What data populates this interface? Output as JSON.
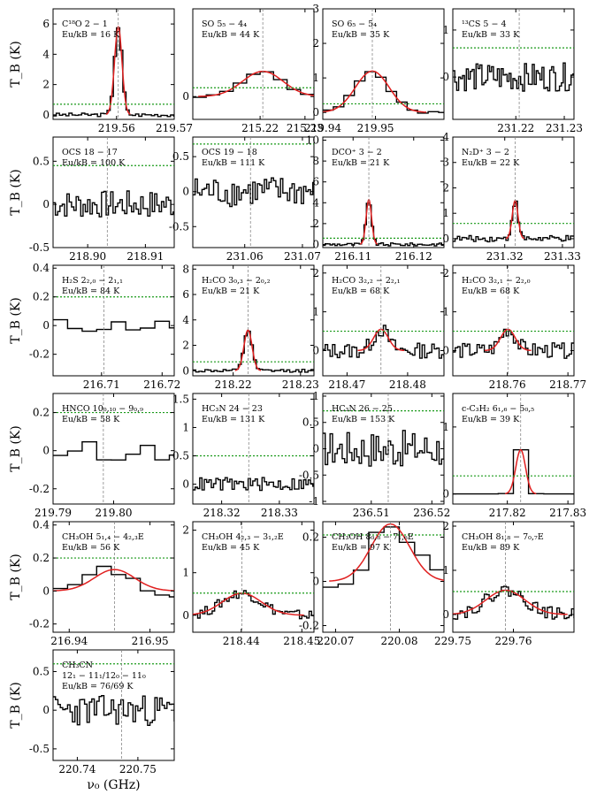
{
  "figure": {
    "ylabel": "T_B (K)",
    "xlabel": "ν₀ (GHz)"
  },
  "chart_data": [
    {
      "type": "line",
      "mol": "C¹⁸O 2 − 1",
      "eu": "Eu/kB = 16 K",
      "x_range": [
        219.549,
        219.57
      ],
      "xticks": [
        219.56,
        219.57
      ],
      "ylim": [
        -0.3,
        7.0
      ],
      "yticks": [
        0,
        2,
        4,
        6
      ],
      "line_freq": 219.5603,
      "noise": 0.7,
      "peak": 5.8,
      "width": 0.00065,
      "spec_noise": 0.12,
      "step": 0.00055,
      "ylabel": true,
      "xlabel": false
    },
    {
      "type": "line",
      "mol": "SO 5₅ − 4₄",
      "eu": "Eu/kB = 44 K",
      "x_range": [
        215.205,
        215.232
      ],
      "xticks": [
        215.22,
        215.23
      ],
      "ylim": [
        -0.65,
        2.5
      ],
      "yticks": [
        0
      ],
      "line_freq": 215.2206,
      "noise": 0.25,
      "peak": 0.72,
      "width": 0.0045,
      "spec_noise": 0.03,
      "step": 0.003,
      "ylabel": false,
      "xlabel": false
    },
    {
      "type": "line",
      "mol": "SO 6₅ − 5₄",
      "eu": "Eu/kB = 35 K",
      "x_range": [
        219.94,
        219.963
      ],
      "xticks": [
        219.94,
        219.95
      ],
      "ylim": [
        -0.2,
        3.0
      ],
      "yticks": [
        0,
        1,
        2,
        3
      ],
      "line_freq": 219.9494,
      "noise": 0.25,
      "peak": 1.2,
      "width": 0.0032,
      "spec_noise": 0.04,
      "step": 0.002,
      "ylabel": false,
      "xlabel": false
    },
    {
      "type": "line",
      "mol": "¹³CS 5 − 4",
      "eu": "Eu/kB = 33 K",
      "x_range": [
        231.207,
        231.232
      ],
      "xticks": [
        231.22,
        231.23
      ],
      "ylim": [
        -0.9,
        1.45
      ],
      "yticks": [
        0,
        1
      ],
      "line_freq": 231.2207,
      "noise": 0.62,
      "peak": 0.0,
      "width": 0.001,
      "spec_noise": 0.3,
      "step": 0.0004,
      "ylabel": false,
      "xlabel": false
    },
    {
      "type": "line",
      "mol": "OCS 18 − 17",
      "eu": "Eu/kB = 100 K",
      "x_range": [
        218.894,
        218.915
      ],
      "xticks": [
        218.9,
        218.91
      ],
      "ylim": [
        -0.5,
        0.78
      ],
      "yticks": [
        -0.5,
        0.0,
        0.5
      ],
      "line_freq": 218.9034,
      "noise": 0.45,
      "peak": 0.0,
      "width": 0.001,
      "spec_noise": 0.16,
      "step": 0.0004,
      "ylabel": true,
      "xlabel": false
    },
    {
      "type": "line",
      "mol": "OCS 19 − 18",
      "eu": "Eu/kB = 111 K",
      "x_range": [
        231.051,
        231.072
      ],
      "xticks": [
        231.06,
        231.07
      ],
      "ylim": [
        -0.8,
        0.78
      ],
      "yticks": [
        -0.5,
        0.0,
        0.5
      ],
      "line_freq": 231.061,
      "noise": 0.68,
      "peak": 0.0,
      "width": 0.001,
      "spec_noise": 0.22,
      "step": 0.0004,
      "ylabel": false,
      "xlabel": false
    },
    {
      "type": "line",
      "mol": "DCO⁺ 3 − 2",
      "eu": "Eu/kB = 21 K",
      "x_range": [
        216.105,
        216.125
      ],
      "xticks": [
        216.11,
        216.12
      ],
      "ylim": [
        -0.3,
        10.3
      ],
      "yticks": [
        0,
        2,
        4,
        6,
        8,
        10
      ],
      "line_freq": 216.1126,
      "noise": 0.6,
      "peak": 4.3,
      "width": 0.00045,
      "spec_noise": 0.15,
      "step": 0.0004,
      "ylabel": false,
      "xlabel": false
    },
    {
      "type": "line",
      "mol": "N₂D⁺ 3 − 2",
      "eu": "Eu/kB = 22 K",
      "x_range": [
        231.311,
        231.332
      ],
      "xticks": [
        231.32,
        231.33
      ],
      "ylim": [
        -0.35,
        4.0
      ],
      "yticks": [
        0,
        1,
        2,
        3,
        4
      ],
      "line_freq": 231.3218,
      "noise": 0.6,
      "peak": 1.5,
      "width": 0.0005,
      "spec_noise": 0.12,
      "step": 0.0004,
      "ylabel": false,
      "xlabel": false
    },
    {
      "type": "line",
      "mol": "H₂S 2₂,₀ − 2₁,₁",
      "eu": "Eu/kB = 84 K",
      "x_range": [
        216.702,
        216.722
      ],
      "xticks": [
        216.71,
        216.72
      ],
      "ylim": [
        -0.35,
        0.42
      ],
      "yticks": [
        -0.2,
        0.0,
        0.2,
        0.4
      ],
      "line_freq": 216.7104,
      "noise": 0.2,
      "peak": 0.0,
      "width": 0.001,
      "spec_noise": 0.05,
      "step": 0.0024,
      "ylabel": true,
      "xlabel": false
    },
    {
      "type": "line",
      "mol": "H₂CO 3₀,₃ − 2₀,₂",
      "eu": "Eu/kB = 21 K",
      "x_range": [
        218.214,
        218.232
      ],
      "xticks": [
        218.22,
        218.23
      ],
      "ylim": [
        -0.4,
        8.3
      ],
      "yticks": [
        0,
        2,
        4,
        6,
        8
      ],
      "line_freq": 218.2222,
      "noise": 0.7,
      "peak": 3.2,
      "width": 0.0006,
      "spec_noise": 0.12,
      "step": 0.00045,
      "ylabel": false,
      "xlabel": false
    },
    {
      "type": "line",
      "mol": "H₂CO 3₂,₂ − 2₂,₁",
      "eu": "Eu/kB = 68 K",
      "x_range": [
        218.466,
        218.486
      ],
      "xticks": [
        218.47,
        218.48
      ],
      "ylim": [
        -0.65,
        2.2
      ],
      "yticks": [
        0,
        1,
        2
      ],
      "line_freq": 218.4756,
      "noise": 0.5,
      "peak": 0.55,
      "width": 0.0012,
      "spec_noise": 0.2,
      "step": 0.0004,
      "ylabel": false,
      "xlabel": false
    },
    {
      "type": "line",
      "mol": "H₂CO 3₂,₁ − 2₂,₀",
      "eu": "Eu/kB = 68 K",
      "x_range": [
        218.751,
        218.771
      ],
      "xticks": [
        218.76,
        218.77
      ],
      "ylim": [
        -0.65,
        2.2
      ],
      "yticks": [
        0,
        1,
        2
      ],
      "line_freq": 218.7601,
      "noise": 0.5,
      "peak": 0.55,
      "width": 0.0012,
      "spec_noise": 0.2,
      "step": 0.0004,
      "ylabel": false,
      "xlabel": false
    },
    {
      "type": "line",
      "mol": "HNCO 10₀,₁₀ − 9₀,₉",
      "eu": "Eu/kB = 58 K",
      "x_range": [
        219.79,
        219.81
      ],
      "xticks": [
        219.79,
        219.8
      ],
      "ylim": [
        -0.28,
        0.3
      ],
      "yticks": [
        -0.2,
        0.0,
        0.2
      ],
      "line_freq": 219.7983,
      "noise": 0.2,
      "peak": 0.0,
      "width": 0.001,
      "spec_noise": 0.05,
      "step": 0.0024,
      "ylabel": true,
      "xlabel": false
    },
    {
      "type": "line",
      "mol": "HC₃N 24 − 23",
      "eu": "Eu/kB = 131 K",
      "x_range": [
        218.315,
        218.336
      ],
      "xticks": [
        218.32,
        218.33
      ],
      "ylim": [
        -0.35,
        1.6
      ],
      "yticks": [
        0.0,
        0.5,
        1.0,
        1.5
      ],
      "line_freq": 218.3247,
      "noise": 0.5,
      "peak": 0.0,
      "width": 0.001,
      "spec_noise": 0.12,
      "step": 0.0004,
      "ylabel": false,
      "xlabel": false
    },
    {
      "type": "line",
      "mol": "HC₃N 26 − 25",
      "eu": "Eu/kB = 153 K",
      "x_range": [
        236.502,
        236.522
      ],
      "xticks": [
        236.51,
        236.52
      ],
      "ylim": [
        -1.05,
        1.05
      ],
      "yticks": [
        -1.0,
        -0.5,
        0.0,
        0.5,
        1.0
      ],
      "line_freq": 236.5128,
      "noise": 0.72,
      "peak": 0.0,
      "width": 0.001,
      "spec_noise": 0.35,
      "step": 0.0004,
      "ylabel": false,
      "xlabel": false
    },
    {
      "type": "line",
      "mol": "c-C₃H₂ 6₁,₆ − 5₀,₅",
      "eu": "Eu/kB = 39 K",
      "x_range": [
        217.811,
        217.831
      ],
      "xticks": [
        217.82,
        217.83
      ],
      "ylim": [
        -0.15,
        1.5
      ],
      "yticks": [
        0,
        1
      ],
      "line_freq": 217.8222,
      "noise": 0.27,
      "peak": 0.66,
      "width": 0.0008,
      "spec_noise": 0.0,
      "step": 0.0025,
      "ylabel": false,
      "xlabel": false
    },
    {
      "type": "line",
      "mol": "CH₃OH 5₁,₄ − 4₂,₃E",
      "eu": "Eu/kB = 56 K",
      "x_range": [
        216.938,
        216.953
      ],
      "xticks": [
        216.94,
        216.95
      ],
      "ylim": [
        -0.25,
        0.42
      ],
      "yticks": [
        -0.2,
        0.0,
        0.2,
        0.4
      ],
      "line_freq": 216.9456,
      "noise": 0.2,
      "peak": 0.13,
      "width": 0.0025,
      "spec_noise": 0.06,
      "step": 0.0018,
      "ylabel": true,
      "xlabel": false
    },
    {
      "type": "line",
      "mol": "CH₃OH 4₂,₃ − 3₁,₂E",
      "eu": "Eu/kB = 45 K",
      "x_range": [
        218.432,
        218.452
      ],
      "xticks": [
        218.44,
        218.45
      ],
      "ylim": [
        -0.4,
        2.2
      ],
      "yticks": [
        0,
        1,
        2
      ],
      "line_freq": 218.4401,
      "noise": 0.52,
      "peak": 0.52,
      "width": 0.0032,
      "spec_noise": 0.12,
      "step": 0.0004,
      "ylabel": false,
      "xlabel": false
    },
    {
      "type": "line",
      "mol": "CH₃OH 8₀,₈ − 7₁,₆E",
      "eu": "Eu/kB = 97 K",
      "x_range": [
        220.068,
        220.087
      ],
      "xticks": [
        220.07,
        220.08
      ],
      "ylim": [
        -0.23,
        0.27
      ],
      "yticks": [
        -0.2,
        0.0,
        0.2
      ],
      "line_freq": 220.0786,
      "noise": 0.21,
      "peak": 0.26,
      "width": 0.003,
      "spec_noise": 0.06,
      "step": 0.0024,
      "ylabel": false,
      "xlabel": false
    },
    {
      "type": "line",
      "mol": "CH₃OH 8₁,₈ − 7₀,₇E",
      "eu": "Eu/kB = 89 K",
      "x_range": [
        229.75,
        229.77
      ],
      "xticks": [
        229.75,
        229.76
      ],
      "ylim": [
        -0.4,
        2.1
      ],
      "yticks": [
        0,
        1,
        2
      ],
      "line_freq": 229.7587,
      "noise": 0.52,
      "peak": 0.55,
      "width": 0.0032,
      "spec_noise": 0.14,
      "step": 0.0004,
      "ylabel": false,
      "xlabel": false
    },
    {
      "type": "line",
      "mol": "CH₃CN",
      "eu": "12₁ − 11₁/12₀ − 11₀",
      "eu2": "Eu/kB = 76/69 K",
      "x_range": [
        220.736,
        220.756
      ],
      "xticks": [
        220.74,
        220.75
      ],
      "ylim": [
        -0.65,
        0.78
      ],
      "yticks": [
        -0.5,
        0.0,
        0.5
      ],
      "line_freq": 220.7473,
      "noise": 0.6,
      "peak": 0.0,
      "width": 0.001,
      "spec_noise": 0.2,
      "step": 0.0004,
      "ylabel": true,
      "xlabel": true
    }
  ]
}
